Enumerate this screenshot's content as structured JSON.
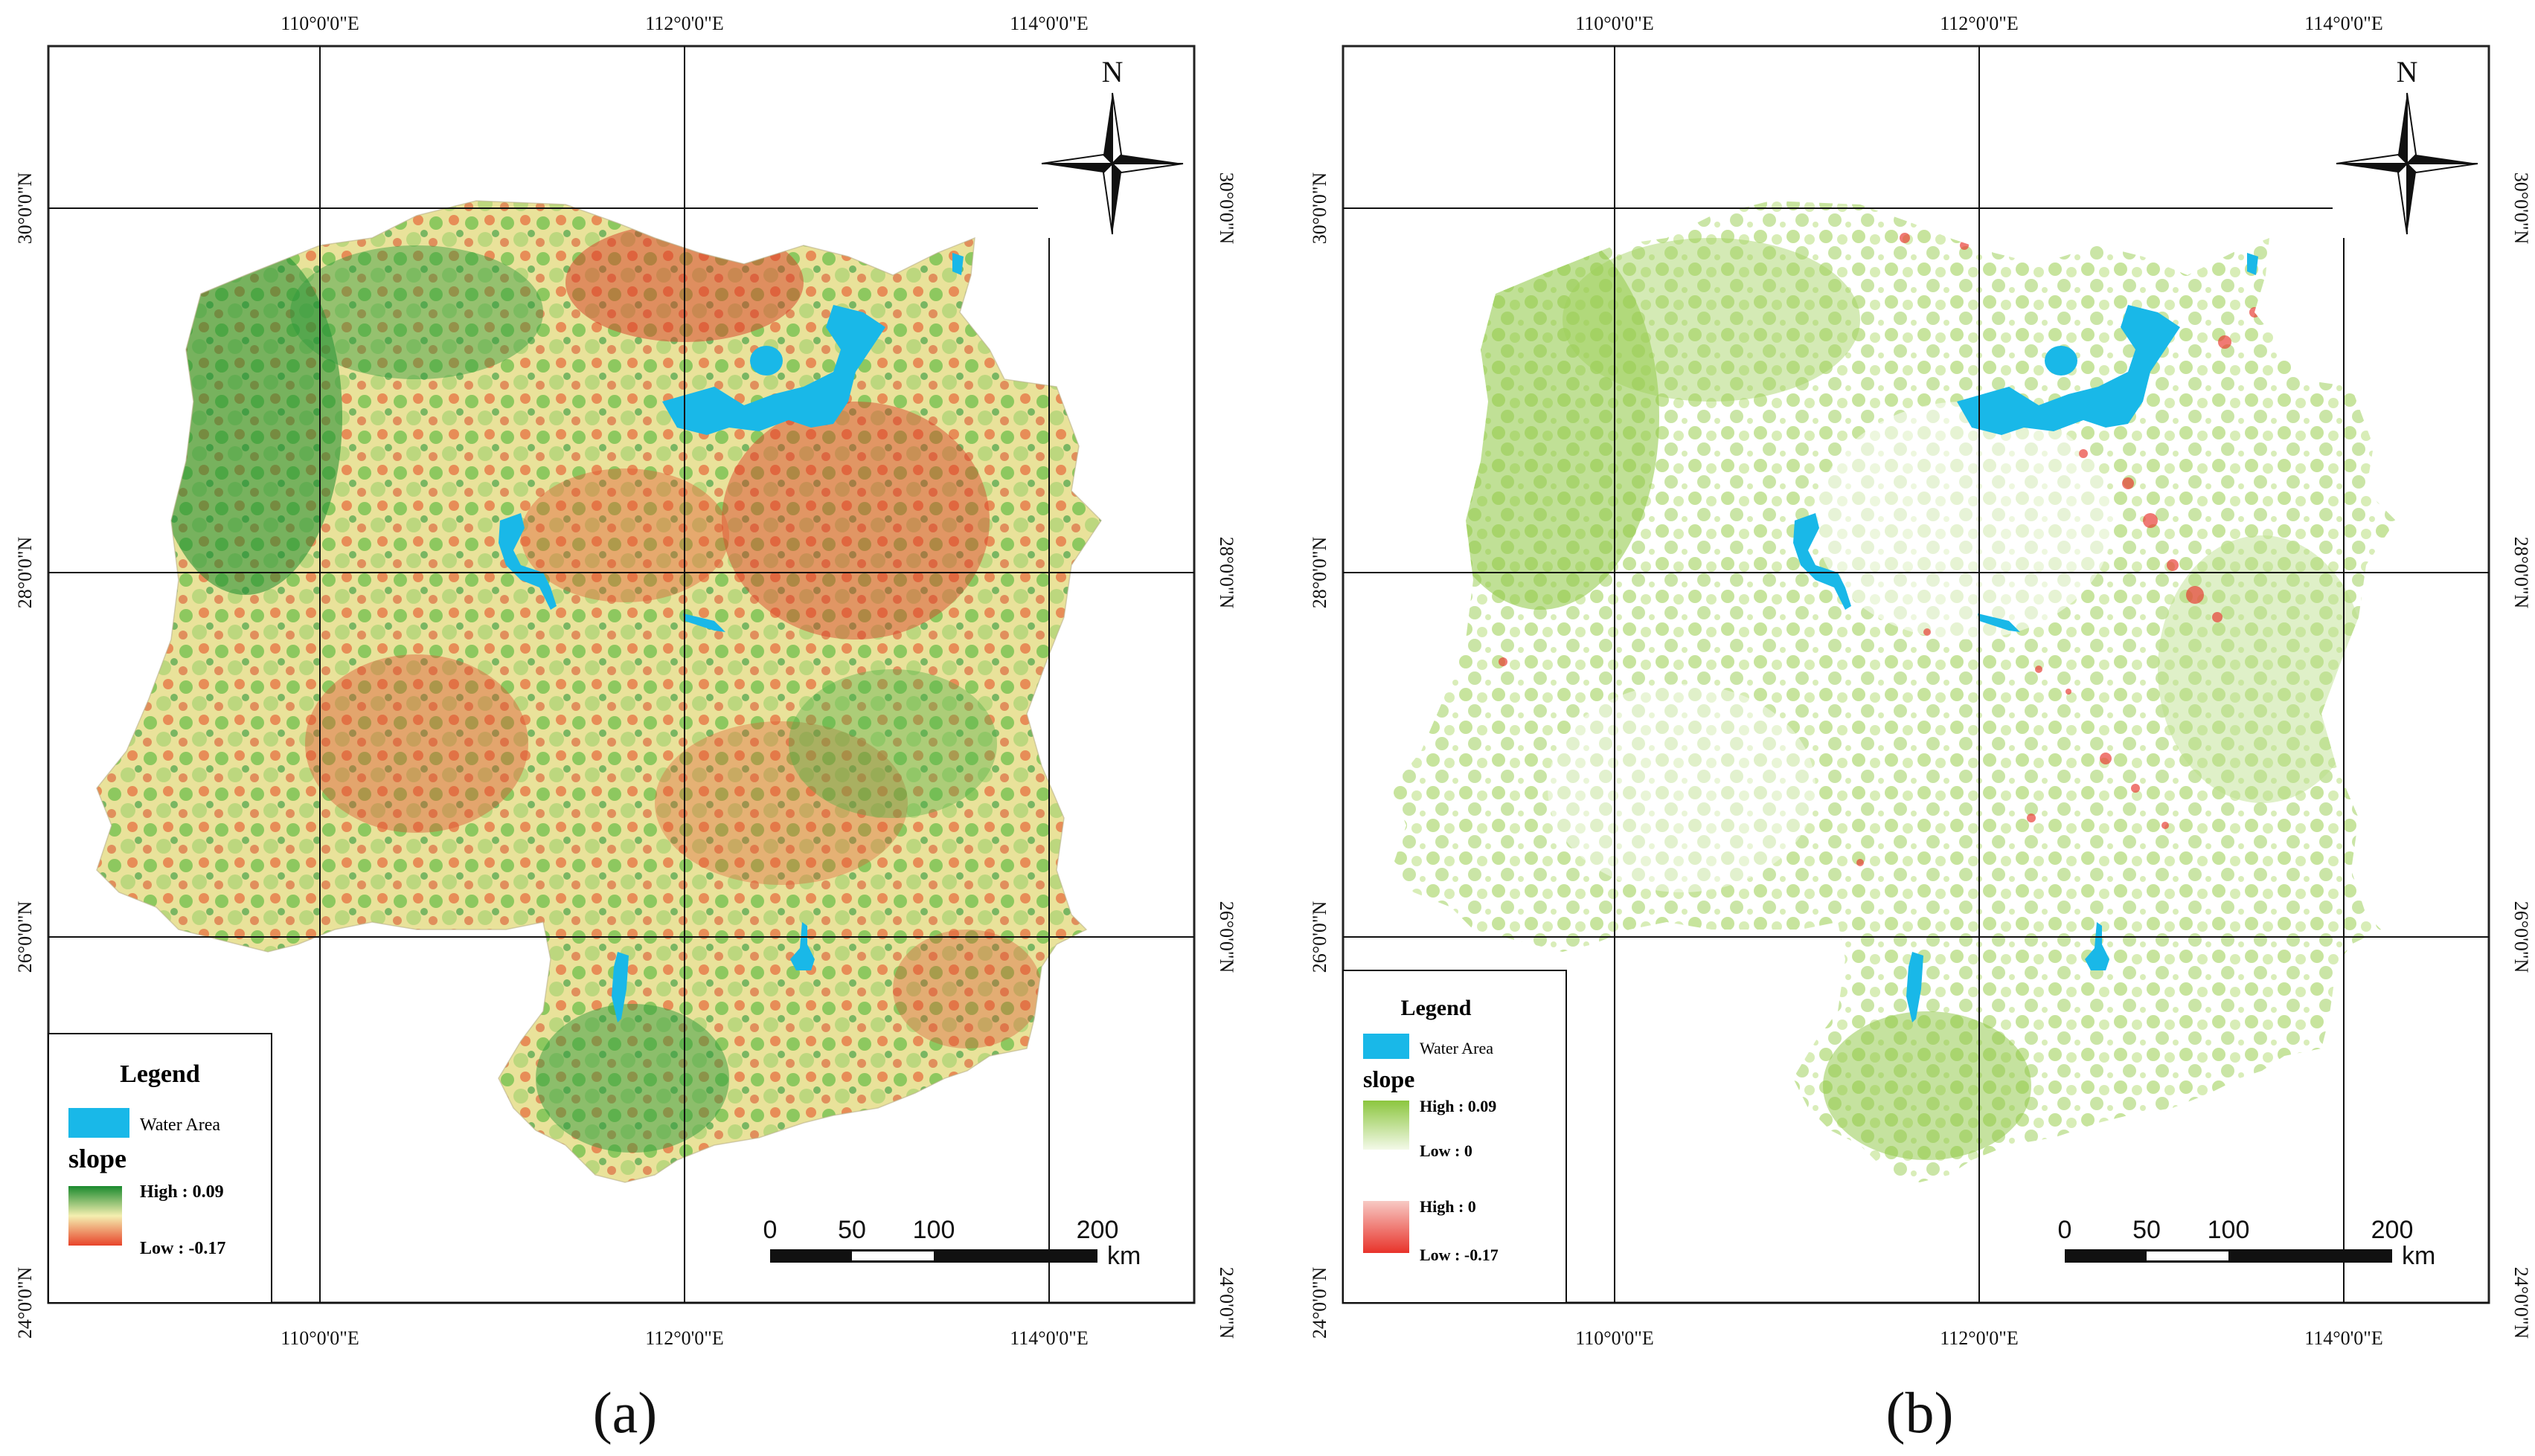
{
  "figure": {
    "panels": [
      {
        "id": "a",
        "caption": "(a)",
        "lon_labels": [
          "110°0'0\"E",
          "112°0'0\"E",
          "114°0'0\"E"
        ],
        "lat_labels": [
          "30°0'0\"N",
          "28°0'0\"N",
          "26°0'0\"N",
          "24°0'0\"N"
        ],
        "north_label": "N",
        "legend": {
          "title": "Legend",
          "water_label": "Water Area",
          "field_label": "slope",
          "ramps": [
            {
              "high": "High : 0.09",
              "low": "Low : -0.17",
              "colors": [
                "#1a8a2e",
                "#f4efb0",
                "#e8442a"
              ]
            }
          ]
        },
        "scale_bar": {
          "ticks": [
            "0",
            "50",
            "100",
            "200"
          ],
          "unit": "km"
        },
        "colors": {
          "water": "#19b8e8",
          "high": "#1a8a2e",
          "mid": "#efe8a8",
          "low": "#d63a24"
        }
      },
      {
        "id": "b",
        "caption": "(b)",
        "lon_labels": [
          "110°0'0\"E",
          "112°0'0\"E",
          "114°0'0\"E"
        ],
        "lat_labels": [
          "30°0'0\"N",
          "28°0'0\"N",
          "26°0'0\"N",
          "24°0'0\"N"
        ],
        "north_label": "N",
        "legend": {
          "title": "Legend",
          "water_label": "Water Area",
          "field_label": "slope",
          "ramps": [
            {
              "high": "High : 0.09",
              "low": "Low : 0",
              "colors": [
                "#8cc63f",
                "#f3f9e8"
              ]
            },
            {
              "high": "High : 0",
              "low": "Low : -0.17",
              "colors": [
                "#f7c9c4",
                "#e8332a"
              ]
            }
          ]
        },
        "scale_bar": {
          "ticks": [
            "0",
            "50",
            "100",
            "200"
          ],
          "unit": "km"
        },
        "colors": {
          "water": "#19b8e8",
          "high": "#8cc63f",
          "mid": "#dcefc0",
          "low": "#e8332a"
        }
      }
    ]
  }
}
